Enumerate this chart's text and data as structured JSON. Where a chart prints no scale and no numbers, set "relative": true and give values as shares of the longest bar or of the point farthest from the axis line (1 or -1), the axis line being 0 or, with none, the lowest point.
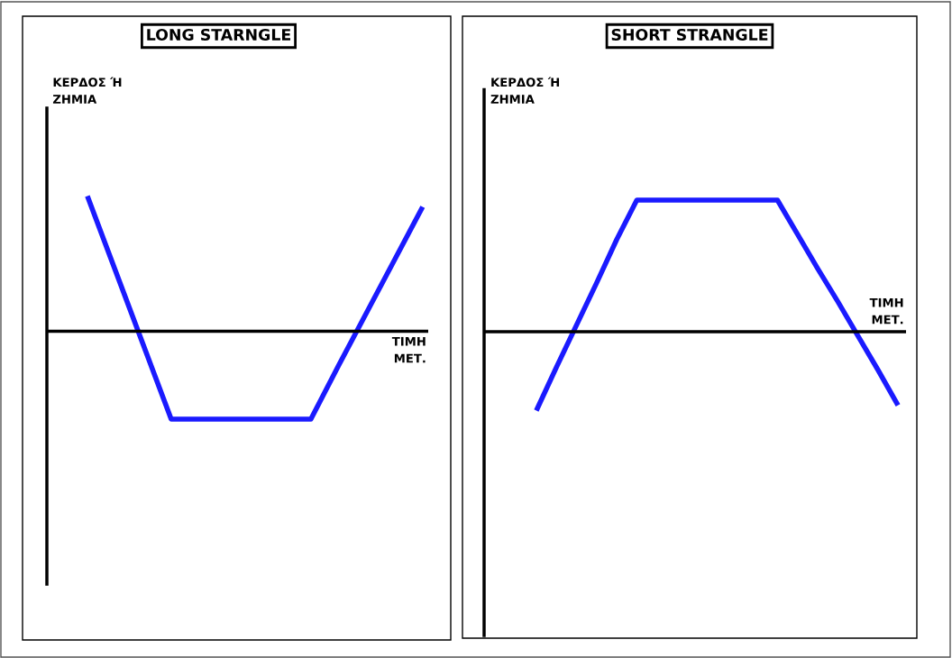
{
  "chart_data": [
    {
      "type": "line",
      "title": "LONG STARNGLE",
      "ylabel": "ΚΕΡΔΟΣ Ή\nΖΗΜΙΑ",
      "xlabel": "ΤΙΜΗ\nΜΕΤ.",
      "relative": true,
      "legend": false,
      "marker": "none",
      "line_style": "solid",
      "categories": [
        null,
        null,
        null,
        null,
        null,
        null,
        null,
        null,
        null,
        null,
        null,
        null,
        null
      ],
      "series": [
        {
          "color": "#1a1aff",
          "values": [
            1.0,
            0.45,
            -0.1,
            -0.65,
            -0.65,
            -0.65,
            -0.65,
            -0.65,
            -0.65,
            -0.25,
            0.14,
            0.53,
            0.92
          ]
        }
      ]
    },
    {
      "type": "line",
      "title": "SHORT STRANGLE",
      "ylabel": "ΚΕΡΔΟΣ Ή\nΖΗΜΙΑ",
      "xlabel": "ΤΙΜΗ\nΜΕΤ.",
      "relative": true,
      "legend": false,
      "marker": "none",
      "line_style": "solid",
      "categories": [
        null,
        null,
        null,
        null,
        null,
        null,
        null,
        null,
        null,
        null,
        null,
        null,
        null,
        null,
        null,
        null,
        null,
        null,
        null
      ],
      "series": [
        {
          "color": "#1a1aff",
          "values": [
            -0.6,
            -0.27,
            0.05,
            0.37,
            0.7,
            1.0,
            1.0,
            1.0,
            1.0,
            1.0,
            1.0,
            1.0,
            1.0,
            0.74,
            0.48,
            0.23,
            -0.03,
            -0.29,
            -0.56
          ]
        }
      ]
    }
  ]
}
